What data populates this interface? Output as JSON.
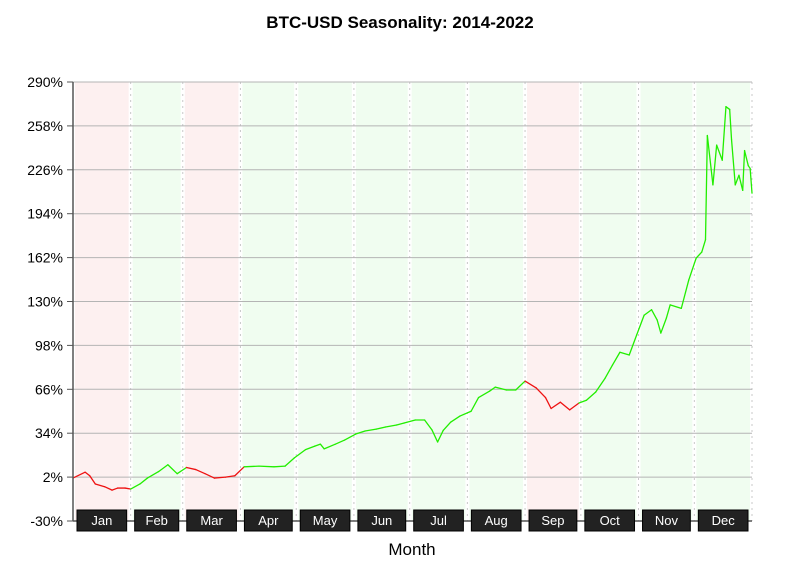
{
  "chart_data": {
    "type": "line",
    "title": "BTC-USD Seasonality: 2014-2022",
    "xlabel": "Month",
    "ylabel": "",
    "ylim": [
      -30,
      290
    ],
    "yticks": [
      "290%",
      "258%",
      "226%",
      "194%",
      "162%",
      "130%",
      "98%",
      "66%",
      "34%",
      "2%",
      "-30%"
    ],
    "ytick_values": [
      290,
      258,
      226,
      194,
      162,
      130,
      98,
      66,
      34,
      2,
      -30
    ],
    "grid": "horizontal",
    "months": [
      "Jan",
      "Feb",
      "Mar",
      "Apr",
      "May",
      "Jun",
      "Jul",
      "Aug",
      "Sep",
      "Oct",
      "Nov",
      "Dec"
    ],
    "month_trend": [
      "down",
      "up",
      "down",
      "up",
      "up",
      "up",
      "up",
      "up",
      "down",
      "up",
      "up",
      "up"
    ],
    "colors": {
      "up_line": "#22ee00",
      "down_line": "#ee1111",
      "up_band": "#f0fdf0",
      "down_band": "#fdf0f0",
      "label_box": "#222222"
    },
    "x_unit": "day of year",
    "series": [
      {
        "x": [
          0,
          6.5,
          9,
          12,
          17,
          21,
          24,
          28,
          31,
          36,
          40,
          46,
          51,
          56,
          61,
          66,
          71,
          76,
          82,
          87,
          92,
          100,
          108,
          114,
          119,
          125,
          130,
          133,
          135,
          141,
          146,
          152,
          157,
          163,
          168,
          174,
          178,
          184,
          189,
          193,
          196,
          199,
          203,
          208,
          214,
          218,
          224,
          227,
          233,
          238,
          243,
          249,
          254,
          257,
          262,
          267,
          272,
          276,
          281,
          286,
          290,
          294,
          299,
          303,
          307,
          311,
          314,
          316,
          319,
          321,
          327,
          331,
          335,
          338,
          340,
          341,
          344,
          346,
          349,
          351,
          353,
          354,
          356,
          358,
          360,
          361,
          363,
          364,
          365
        ],
        "y": [
          1.3,
          5.6,
          3,
          -3,
          -5,
          -7.5,
          -6,
          -6,
          -6.7,
          -3,
          1.3,
          6,
          11,
          4.5,
          9,
          7.5,
          4.5,
          1.3,
          2,
          3,
          9.5,
          10,
          9.5,
          10,
          16,
          22,
          24.6,
          26,
          22.6,
          26,
          29,
          33.4,
          35.6,
          37,
          38.5,
          40,
          41.4,
          43.6,
          43.6,
          36.3,
          27.6,
          36,
          42,
          46.5,
          50,
          60,
          64.7,
          67.6,
          65.5,
          65.5,
          72,
          67,
          60,
          52,
          56.6,
          51,
          56,
          58,
          64,
          74,
          83.7,
          93,
          91,
          105.6,
          120,
          124,
          116.6,
          107,
          118,
          127.5,
          125,
          145.6,
          161.7,
          166,
          175,
          251,
          215,
          244,
          233,
          272,
          270,
          248,
          215,
          222,
          211,
          240,
          229,
          227,
          209
        ]
      }
    ]
  }
}
